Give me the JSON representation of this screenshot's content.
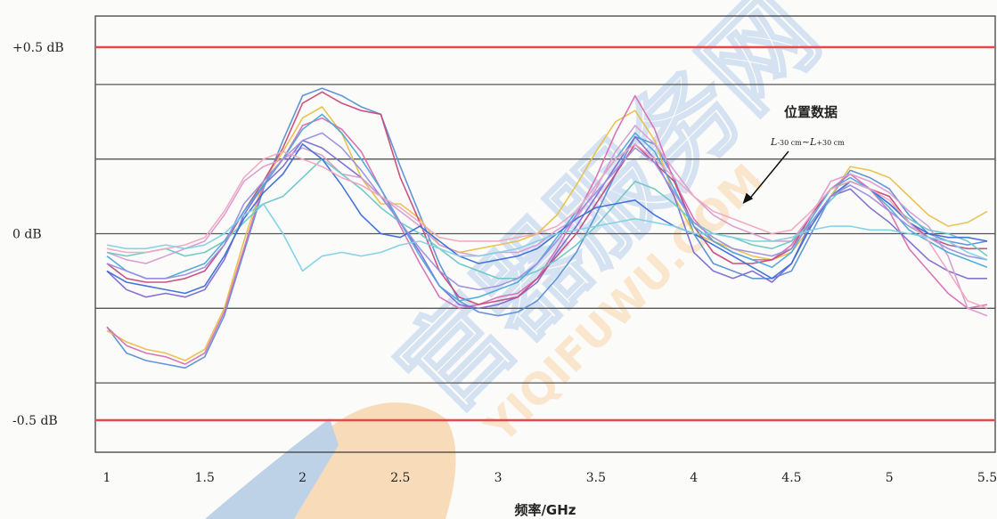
{
  "chart_data": {
    "type": "line",
    "title": "",
    "xlabel": "频率/GHz",
    "ylabel": "",
    "xlim": [
      1.0,
      5.5
    ],
    "ylim": [
      -0.6,
      0.6
    ],
    "xticks": [
      {
        "value": 1.0,
        "label": "1"
      },
      {
        "value": 1.5,
        "label": "1.5"
      },
      {
        "value": 2.0,
        "label": "2"
      },
      {
        "value": 2.5,
        "label": "2.5"
      },
      {
        "value": 3.0,
        "label": "3"
      },
      {
        "value": 3.5,
        "label": "3.5"
      },
      {
        "value": 4.0,
        "label": "4"
      },
      {
        "value": 4.5,
        "label": "4.5"
      },
      {
        "value": 5.0,
        "label": "5"
      },
      {
        "value": 5.5,
        "label": "5.5"
      }
    ],
    "yticks": [
      {
        "value": 0.5,
        "label": "+0.5 dB"
      },
      {
        "value": 0.0,
        "label": "0 dB"
      },
      {
        "value": -0.5,
        "label": "-0.5 dB"
      }
    ],
    "reference_lines": [
      {
        "value": 0.5,
        "color": "#e8474b"
      },
      {
        "value": -0.5,
        "color": "#e8474b"
      },
      {
        "value": 0.4,
        "color": "#555555"
      },
      {
        "value": 0.2,
        "color": "#555555"
      },
      {
        "value": 0.0,
        "color": "#555555"
      },
      {
        "value": -0.2,
        "color": "#555555"
      },
      {
        "value": -0.4,
        "color": "#555555"
      }
    ],
    "annotation": {
      "title": "位置数据",
      "subtitle_parts": [
        "L",
        "-30 cm",
        "~",
        "L",
        "+30 cm"
      ],
      "arrow_to": [
        4.25,
        0.08
      ]
    },
    "x": [
      1.0,
      1.1,
      1.2,
      1.3,
      1.4,
      1.5,
      1.6,
      1.7,
      1.8,
      1.9,
      2.0,
      2.1,
      2.2,
      2.3,
      2.4,
      2.5,
      2.6,
      2.7,
      2.8,
      2.9,
      3.0,
      3.1,
      3.2,
      3.3,
      3.4,
      3.5,
      3.6,
      3.7,
      3.8,
      3.9,
      4.0,
      4.1,
      4.2,
      4.3,
      4.4,
      4.5,
      4.6,
      4.7,
      4.8,
      4.9,
      5.0,
      5.1,
      5.2,
      5.3,
      5.4,
      5.5
    ],
    "series": [
      {
        "color": "#5a8fd6",
        "values": [
          -0.25,
          -0.32,
          -0.34,
          -0.35,
          -0.36,
          -0.33,
          -0.22,
          -0.05,
          0.12,
          0.25,
          0.37,
          0.39,
          0.37,
          0.34,
          0.32,
          0.18,
          0.05,
          -0.08,
          -0.18,
          -0.21,
          -0.22,
          -0.21,
          -0.18,
          -0.12,
          -0.05,
          0.05,
          0.16,
          0.26,
          0.24,
          0.15,
          0.0,
          -0.08,
          -0.1,
          -0.12,
          -0.12,
          -0.1,
          0.0,
          0.1,
          0.17,
          0.15,
          0.12,
          0.05,
          0.0,
          -0.02,
          -0.03,
          -0.02
        ]
      },
      {
        "color": "#e6c14a",
        "values": [
          -0.26,
          -0.29,
          -0.31,
          -0.32,
          -0.34,
          -0.31,
          -0.2,
          -0.02,
          0.14,
          0.22,
          0.31,
          0.34,
          0.27,
          0.15,
          0.08,
          0.08,
          0.04,
          -0.03,
          -0.05,
          -0.04,
          -0.03,
          -0.02,
          0.0,
          0.05,
          0.13,
          0.22,
          0.3,
          0.33,
          0.25,
          0.1,
          0.0,
          -0.02,
          -0.04,
          -0.06,
          -0.07,
          -0.05,
          0.02,
          0.1,
          0.18,
          0.17,
          0.15,
          0.1,
          0.05,
          0.02,
          0.03,
          0.06
        ]
      },
      {
        "color": "#d66fb3",
        "values": [
          -0.25,
          -0.3,
          -0.32,
          -0.33,
          -0.35,
          -0.32,
          -0.21,
          -0.04,
          0.13,
          0.2,
          0.29,
          0.31,
          0.28,
          0.22,
          0.12,
          0.02,
          -0.08,
          -0.17,
          -0.2,
          -0.19,
          -0.17,
          -0.16,
          -0.12,
          -0.04,
          0.05,
          0.15,
          0.27,
          0.37,
          0.28,
          0.14,
          0.04,
          -0.02,
          -0.05,
          -0.07,
          -0.07,
          -0.03,
          0.05,
          0.12,
          0.16,
          0.12,
          0.06,
          -0.04,
          -0.1,
          -0.16,
          -0.2,
          -0.19
        ]
      },
      {
        "color": "#7e6bd1",
        "values": [
          -0.1,
          -0.15,
          -0.17,
          -0.16,
          -0.17,
          -0.15,
          -0.07,
          0.05,
          0.13,
          0.18,
          0.25,
          0.23,
          0.19,
          0.15,
          0.1,
          0.03,
          -0.05,
          -0.14,
          -0.19,
          -0.2,
          -0.19,
          -0.17,
          -0.13,
          -0.05,
          0.02,
          0.1,
          0.18,
          0.26,
          0.2,
          0.1,
          -0.05,
          -0.1,
          -0.12,
          -0.1,
          -0.13,
          -0.08,
          0.03,
          0.1,
          0.12,
          0.07,
          0.03,
          -0.02,
          -0.07,
          -0.1,
          -0.12,
          -0.12
        ]
      },
      {
        "color": "#c74a7a",
        "values": [
          -0.08,
          -0.12,
          -0.13,
          -0.13,
          -0.12,
          -0.1,
          -0.03,
          0.06,
          0.14,
          0.23,
          0.35,
          0.38,
          0.35,
          0.33,
          0.32,
          0.15,
          0.03,
          -0.1,
          -0.17,
          -0.19,
          -0.18,
          -0.17,
          -0.12,
          -0.06,
          0.0,
          0.08,
          0.16,
          0.24,
          0.19,
          0.14,
          0.02,
          -0.05,
          -0.08,
          -0.08,
          -0.07,
          -0.04,
          0.05,
          0.12,
          0.14,
          0.12,
          0.1,
          0.03,
          -0.01,
          -0.03,
          -0.04,
          -0.04
        ]
      },
      {
        "color": "#d89bd2",
        "values": [
          -0.05,
          -0.07,
          -0.08,
          -0.06,
          -0.04,
          -0.02,
          0.05,
          0.14,
          0.18,
          0.2,
          0.23,
          0.21,
          0.16,
          0.15,
          0.1,
          0.06,
          0.02,
          -0.03,
          -0.05,
          -0.06,
          -0.05,
          -0.05,
          -0.03,
          0.01,
          0.04,
          0.12,
          0.22,
          0.29,
          0.24,
          0.17,
          0.1,
          0.05,
          0.02,
          0.0,
          -0.02,
          -0.02,
          0.05,
          0.14,
          0.16,
          0.14,
          0.11,
          0.06,
          0.02,
          -0.06,
          -0.2,
          -0.22
        ]
      },
      {
        "color": "#6cc7c4",
        "values": [
          -0.05,
          -0.06,
          -0.05,
          -0.04,
          -0.06,
          -0.05,
          -0.02,
          0.03,
          0.08,
          0.1,
          0.15,
          0.2,
          0.16,
          0.12,
          0.07,
          0.03,
          0.0,
          -0.04,
          -0.08,
          -0.1,
          -0.12,
          -0.12,
          -0.1,
          -0.07,
          -0.03,
          0.02,
          0.08,
          0.14,
          0.12,
          0.08,
          0.03,
          0.0,
          -0.01,
          -0.03,
          -0.04,
          -0.02,
          0.03,
          0.09,
          0.14,
          0.12,
          0.08,
          0.04,
          0.01,
          0.0,
          -0.02,
          -0.06
        ]
      },
      {
        "color": "#4da9d9",
        "values": [
          -0.06,
          -0.1,
          -0.12,
          -0.12,
          -0.1,
          -0.08,
          -0.02,
          0.06,
          0.13,
          0.2,
          0.28,
          0.32,
          0.27,
          0.2,
          0.12,
          0.03,
          -0.06,
          -0.14,
          -0.18,
          -0.17,
          -0.15,
          -0.13,
          -0.08,
          -0.01,
          0.06,
          0.13,
          0.2,
          0.27,
          0.22,
          0.12,
          0.02,
          -0.02,
          -0.05,
          -0.07,
          -0.09,
          -0.05,
          0.04,
          0.12,
          0.15,
          0.12,
          0.07,
          0.01,
          -0.02,
          -0.05,
          -0.07,
          -0.09
        ]
      },
      {
        "color": "#3a6ed8",
        "values": [
          -0.1,
          -0.13,
          -0.14,
          -0.15,
          -0.16,
          -0.14,
          -0.06,
          0.04,
          0.11,
          0.16,
          0.24,
          0.2,
          0.13,
          0.05,
          0.0,
          -0.01,
          0.02,
          -0.02,
          -0.06,
          -0.08,
          -0.07,
          -0.06,
          -0.04,
          0.0,
          0.04,
          0.07,
          0.08,
          0.09,
          0.05,
          0.02,
          0.0,
          -0.03,
          -0.06,
          -0.09,
          -0.12,
          -0.08,
          0.02,
          0.1,
          0.14,
          0.12,
          0.08,
          0.03,
          0.0,
          -0.01,
          -0.01,
          -0.02
        ]
      },
      {
        "color": "#9a8fe0",
        "values": [
          -0.08,
          -0.1,
          -0.12,
          -0.12,
          -0.11,
          -0.09,
          -0.03,
          0.08,
          0.14,
          0.2,
          0.25,
          0.27,
          0.23,
          0.17,
          0.1,
          0.03,
          -0.04,
          -0.1,
          -0.14,
          -0.15,
          -0.14,
          -0.12,
          -0.08,
          -0.02,
          0.05,
          0.11,
          0.17,
          0.23,
          0.19,
          0.11,
          0.03,
          -0.01,
          -0.04,
          -0.05,
          -0.06,
          -0.04,
          0.03,
          0.1,
          0.13,
          0.1,
          0.06,
          0.02,
          -0.01,
          -0.04,
          -0.06,
          -0.07
        ]
      },
      {
        "color": "#f0a8c0",
        "values": [
          -0.04,
          -0.05,
          -0.05,
          -0.04,
          -0.03,
          -0.01,
          0.06,
          0.15,
          0.2,
          0.22,
          0.2,
          0.18,
          0.15,
          0.13,
          0.1,
          0.07,
          0.03,
          -0.01,
          -0.02,
          -0.02,
          -0.02,
          -0.01,
          0.0,
          0.02,
          0.06,
          0.13,
          0.2,
          0.24,
          0.2,
          0.15,
          0.1,
          0.06,
          0.04,
          0.02,
          0.0,
          0.01,
          0.06,
          0.12,
          0.14,
          0.12,
          0.09,
          0.03,
          -0.02,
          -0.1,
          -0.18,
          -0.2
        ]
      },
      {
        "color": "#7fd0e6",
        "values": [
          -0.03,
          -0.04,
          -0.04,
          -0.03,
          -0.04,
          -0.03,
          0.0,
          0.05,
          0.08,
          0.0,
          -0.1,
          -0.06,
          -0.05,
          -0.06,
          -0.05,
          -0.03,
          -0.02,
          -0.04,
          -0.06,
          -0.06,
          -0.05,
          -0.04,
          -0.02,
          0.0,
          0.01,
          0.02,
          0.03,
          0.04,
          0.03,
          0.02,
          0.0,
          0.0,
          -0.01,
          -0.02,
          -0.02,
          -0.01,
          0.01,
          0.02,
          0.02,
          0.01,
          0.01,
          0.0,
          -0.01,
          -0.02,
          -0.05,
          -0.07
        ]
      }
    ]
  },
  "watermark": {
    "brand_cn": "官器服务网",
    "brand_en": "YIQIFUWU.COM"
  }
}
